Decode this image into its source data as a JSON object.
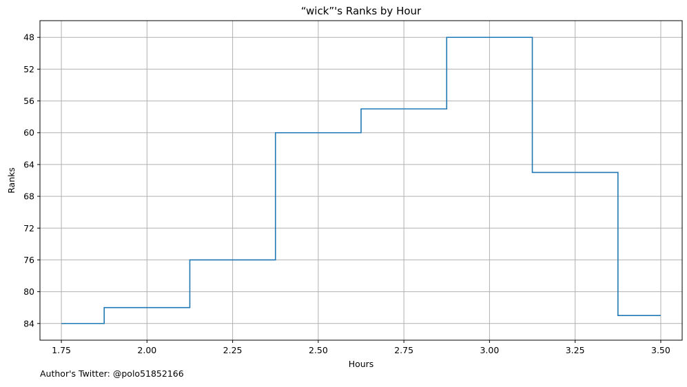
{
  "chart_data": {
    "type": "line",
    "drawstyle": "steps-mid",
    "title": "“wick”'s Ranks by Hour",
    "xlabel": "Hours",
    "ylabel": "Ranks",
    "x": [
      1.75,
      2.0,
      2.25,
      2.5,
      2.75,
      3.0,
      3.25,
      3.5
    ],
    "series": [
      {
        "values": [
          84,
          82,
          76,
          60,
          57,
          48,
          65,
          83
        ]
      }
    ],
    "xlim": [
      1.6875,
      3.5625
    ],
    "ylim": [
      86.1,
      45.9
    ],
    "y_inverted": true,
    "xticks": [
      1.75,
      2.0,
      2.25,
      2.5,
      2.75,
      3.0,
      3.25,
      3.5
    ],
    "xtick_labels": [
      "1.75",
      "2.00",
      "2.25",
      "2.50",
      "2.75",
      "3.00",
      "3.25",
      "3.50"
    ],
    "yticks": [
      48,
      52,
      56,
      60,
      64,
      68,
      72,
      76,
      80,
      84
    ],
    "ytick_labels": [
      "48",
      "52",
      "56",
      "60",
      "64",
      "68",
      "72",
      "76",
      "80",
      "84"
    ],
    "grid": true,
    "colors": {
      "line": "#1f77b4",
      "grid": "#b0b0b0",
      "axes": "#000000"
    }
  },
  "footer": {
    "text": "Author's Twitter: @polo51852166"
  }
}
